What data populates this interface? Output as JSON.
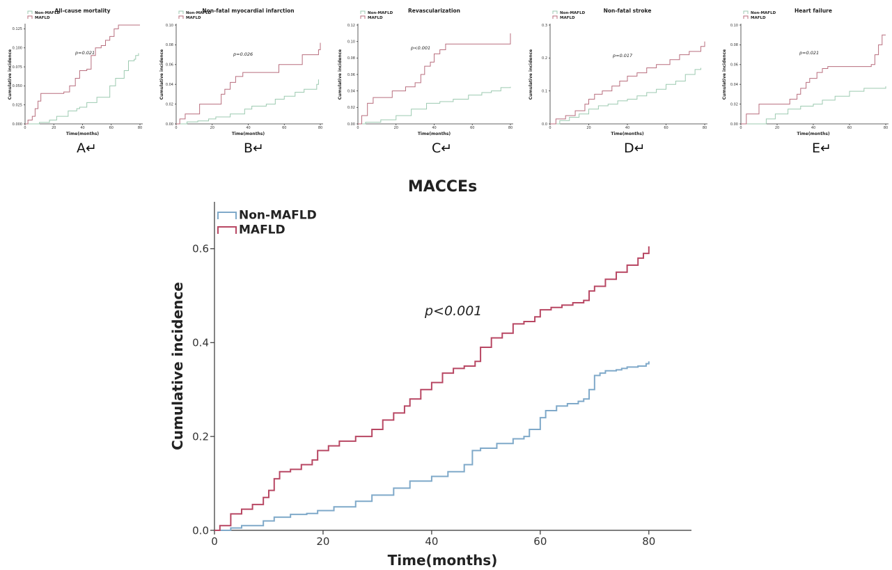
{
  "colors": {
    "non_mafld": "#7fa9c9",
    "mafld": "#b84763",
    "small_non_mafld": "#9ccab0",
    "small_mafld": "#b86d7d"
  },
  "legend": {
    "non_mafld": "Non-MAFLD",
    "mafld": "MAFLD"
  },
  "xlabel": "Time(months)",
  "ylabel": "Cumulative incidence",
  "chart_data": [
    {
      "panel": "A",
      "type": "line",
      "title": "All-cause mortality",
      "p_value": "p=0.021",
      "xlabel": "Time(months)",
      "ylabel": "Cumulative incidence",
      "xlim": [
        0,
        80
      ],
      "ylim": [
        0,
        0.13
      ],
      "xticks": [
        "0",
        "20",
        "40",
        "60",
        "80"
      ],
      "yticks": [
        "0.000",
        "0.025",
        "0.050",
        "0.075",
        "0.100",
        "0.125"
      ],
      "series": [
        {
          "name": "Non-MAFLD",
          "x": [
            0,
            7,
            10,
            17,
            22,
            30,
            36,
            38,
            43,
            50,
            59,
            63,
            69,
            72,
            76,
            77,
            79
          ],
          "y": [
            0,
            0,
            0.002,
            0.005,
            0.01,
            0.017,
            0.02,
            0.022,
            0.028,
            0.035,
            0.05,
            0.06,
            0.07,
            0.083,
            0.085,
            0.09,
            0.093
          ]
        },
        {
          "name": "MAFLD",
          "x": [
            0,
            2,
            5,
            7,
            9,
            11,
            27,
            31,
            35,
            38,
            43,
            46,
            49,
            53,
            56,
            59,
            62,
            65,
            80
          ],
          "y": [
            0,
            0.005,
            0.01,
            0.02,
            0.03,
            0.04,
            0.042,
            0.05,
            0.06,
            0.07,
            0.072,
            0.09,
            0.1,
            0.103,
            0.11,
            0.115,
            0.125,
            0.13,
            0.13
          ]
        }
      ]
    },
    {
      "panel": "B",
      "type": "line",
      "title": "Non-fatal myocardial infarction",
      "p_value": "p=0.026",
      "xlabel": "Time(months)",
      "ylabel": "Cumulative incidence",
      "xlim": [
        0,
        80
      ],
      "ylim": [
        0,
        0.1
      ],
      "xticks": [
        "0",
        "20",
        "40",
        "60",
        "80"
      ],
      "yticks": [
        "0.00",
        "0.02",
        "0.04",
        "0.06",
        "0.08",
        "0.10"
      ],
      "series": [
        {
          "name": "Non-MAFLD",
          "x": [
            0,
            6,
            12,
            18,
            22,
            30,
            38,
            42,
            50,
            55,
            60,
            66,
            71,
            78,
            79
          ],
          "y": [
            0,
            0.002,
            0.003,
            0.005,
            0.007,
            0.01,
            0.015,
            0.018,
            0.02,
            0.025,
            0.028,
            0.032,
            0.035,
            0.04,
            0.045
          ]
        },
        {
          "name": "MAFLD",
          "x": [
            0,
            2,
            5,
            13,
            25,
            27,
            30,
            33,
            37,
            57,
            70,
            79,
            80
          ],
          "y": [
            0,
            0.005,
            0.01,
            0.02,
            0.03,
            0.035,
            0.042,
            0.048,
            0.052,
            0.06,
            0.07,
            0.075,
            0.082
          ]
        }
      ]
    },
    {
      "panel": "C",
      "type": "line",
      "title": "Revascularization",
      "p_value": "p<0.001",
      "xlabel": "Time(months)",
      "ylabel": "Cumulative incidence",
      "xlim": [
        0,
        80
      ],
      "ylim": [
        0,
        0.12
      ],
      "xticks": [
        "0",
        "20",
        "40",
        "60",
        "80"
      ],
      "yticks": [
        "0.00",
        "0.02",
        "0.04",
        "0.06",
        "0.08",
        "0.10",
        "0.12"
      ],
      "series": [
        {
          "name": "Non-MAFLD",
          "x": [
            0,
            4,
            12,
            20,
            28,
            36,
            43,
            50,
            58,
            65,
            70,
            75,
            80
          ],
          "y": [
            0,
            0.002,
            0.005,
            0.01,
            0.018,
            0.025,
            0.027,
            0.03,
            0.035,
            0.038,
            0.04,
            0.044,
            0.045
          ]
        },
        {
          "name": "MAFLD",
          "x": [
            0,
            2,
            5,
            8,
            18,
            25,
            30,
            33,
            35,
            38,
            40,
            43,
            46,
            80
          ],
          "y": [
            0,
            0.01,
            0.025,
            0.032,
            0.04,
            0.045,
            0.05,
            0.06,
            0.07,
            0.075,
            0.085,
            0.09,
            0.097,
            0.11
          ]
        }
      ]
    },
    {
      "panel": "D",
      "type": "line",
      "title": "Non-fatal stroke",
      "p_value": "p=0.017",
      "xlabel": "Time(months)",
      "ylabel": "Cumulative incidence",
      "xlim": [
        0,
        80
      ],
      "ylim": [
        0,
        0.3
      ],
      "xticks": [
        "0",
        "20",
        "40",
        "60",
        "80"
      ],
      "yticks": [
        "0.0",
        "0.1",
        "0.2",
        "0.3"
      ],
      "series": [
        {
          "name": "Non-MAFLD",
          "x": [
            0,
            5,
            10,
            15,
            20,
            25,
            30,
            35,
            40,
            45,
            50,
            55,
            60,
            65,
            70,
            75,
            78
          ],
          "y": [
            0,
            0.01,
            0.02,
            0.03,
            0.045,
            0.055,
            0.06,
            0.07,
            0.075,
            0.085,
            0.095,
            0.105,
            0.12,
            0.13,
            0.15,
            0.165,
            0.17
          ]
        },
        {
          "name": "MAFLD",
          "x": [
            0,
            3,
            8,
            13,
            18,
            20,
            23,
            27,
            32,
            36,
            40,
            45,
            50,
            55,
            62,
            67,
            72,
            78,
            80
          ],
          "y": [
            0,
            0.015,
            0.025,
            0.04,
            0.06,
            0.075,
            0.09,
            0.1,
            0.115,
            0.13,
            0.145,
            0.155,
            0.17,
            0.18,
            0.195,
            0.21,
            0.22,
            0.235,
            0.25
          ]
        }
      ]
    },
    {
      "panel": "E",
      "type": "line",
      "title": "Heart failure",
      "p_value": "p=0.021",
      "xlabel": "Time(months)",
      "ylabel": "Cumulative incidence",
      "xlim": [
        0,
        80
      ],
      "ylim": [
        0,
        0.1
      ],
      "xticks": [
        "0",
        "20",
        "40",
        "60",
        "80"
      ],
      "yticks": [
        "0.00",
        "0.02",
        "0.04",
        "0.06",
        "0.08",
        "0.10"
      ],
      "series": [
        {
          "name": "Non-MAFLD",
          "x": [
            0,
            9,
            14,
            19,
            26,
            33,
            40,
            45,
            52,
            60,
            68,
            80
          ],
          "y": [
            0,
            0,
            0.005,
            0.01,
            0.015,
            0.018,
            0.02,
            0.024,
            0.028,
            0.033,
            0.036,
            0.038
          ]
        },
        {
          "name": "MAFLD",
          "x": [
            0,
            3,
            10,
            27,
            31,
            33,
            36,
            38,
            42,
            45,
            48,
            72,
            74,
            76,
            78,
            80
          ],
          "y": [
            0,
            0.01,
            0.02,
            0.025,
            0.03,
            0.036,
            0.042,
            0.046,
            0.052,
            0.056,
            0.058,
            0.06,
            0.07,
            0.08,
            0.09,
            0.09
          ]
        }
      ]
    },
    {
      "panel": "MACCEs",
      "type": "line",
      "title": "MACCEs",
      "p_value": "p<0.001",
      "xlabel": "Time(months)",
      "ylabel": "Cumulative incidence",
      "xlim": [
        0,
        84
      ],
      "ylim": [
        0,
        0.7
      ],
      "xticks": [
        "0",
        "20",
        "40",
        "60",
        "80"
      ],
      "yticks": [
        "0.0",
        "0.2",
        "0.4",
        "0.6"
      ],
      "series": [
        {
          "name": "Non-MAFLD",
          "x": [
            0,
            3,
            5,
            9,
            11,
            14,
            17,
            19,
            22,
            26,
            29,
            33,
            36,
            40,
            43,
            46,
            47.5,
            49,
            52,
            55,
            57,
            58,
            60,
            61,
            63,
            65,
            67,
            68,
            69,
            70,
            71,
            72,
            74,
            75,
            76,
            78,
            79.5,
            80
          ],
          "y": [
            0,
            0.005,
            0.01,
            0.02,
            0.028,
            0.034,
            0.036,
            0.042,
            0.05,
            0.062,
            0.075,
            0.09,
            0.105,
            0.115,
            0.125,
            0.14,
            0.17,
            0.175,
            0.185,
            0.195,
            0.2,
            0.215,
            0.24,
            0.255,
            0.265,
            0.27,
            0.275,
            0.28,
            0.3,
            0.33,
            0.335,
            0.34,
            0.342,
            0.345,
            0.348,
            0.35,
            0.355,
            0.36
          ]
        },
        {
          "name": "MAFLD",
          "x": [
            0,
            1,
            3,
            5,
            7,
            9,
            10,
            11,
            12,
            14,
            16,
            18,
            19,
            21,
            23,
            26,
            29,
            31,
            33,
            35,
            36,
            38,
            40,
            42,
            44,
            46,
            48,
            49,
            51,
            53,
            55,
            57,
            59,
            60,
            62,
            64,
            66,
            68,
            69,
            70,
            72,
            74,
            76,
            78,
            79,
            80
          ],
          "y": [
            0,
            0.01,
            0.035,
            0.045,
            0.055,
            0.07,
            0.085,
            0.11,
            0.125,
            0.13,
            0.14,
            0.15,
            0.17,
            0.18,
            0.19,
            0.2,
            0.215,
            0.235,
            0.25,
            0.265,
            0.28,
            0.3,
            0.315,
            0.335,
            0.345,
            0.35,
            0.36,
            0.39,
            0.41,
            0.42,
            0.44,
            0.445,
            0.455,
            0.47,
            0.475,
            0.48,
            0.485,
            0.49,
            0.51,
            0.52,
            0.535,
            0.55,
            0.565,
            0.58,
            0.59,
            0.605
          ]
        }
      ]
    }
  ],
  "panel_letters": [
    "A↵",
    "B↵",
    "C↵",
    "D↵",
    "E↵"
  ]
}
